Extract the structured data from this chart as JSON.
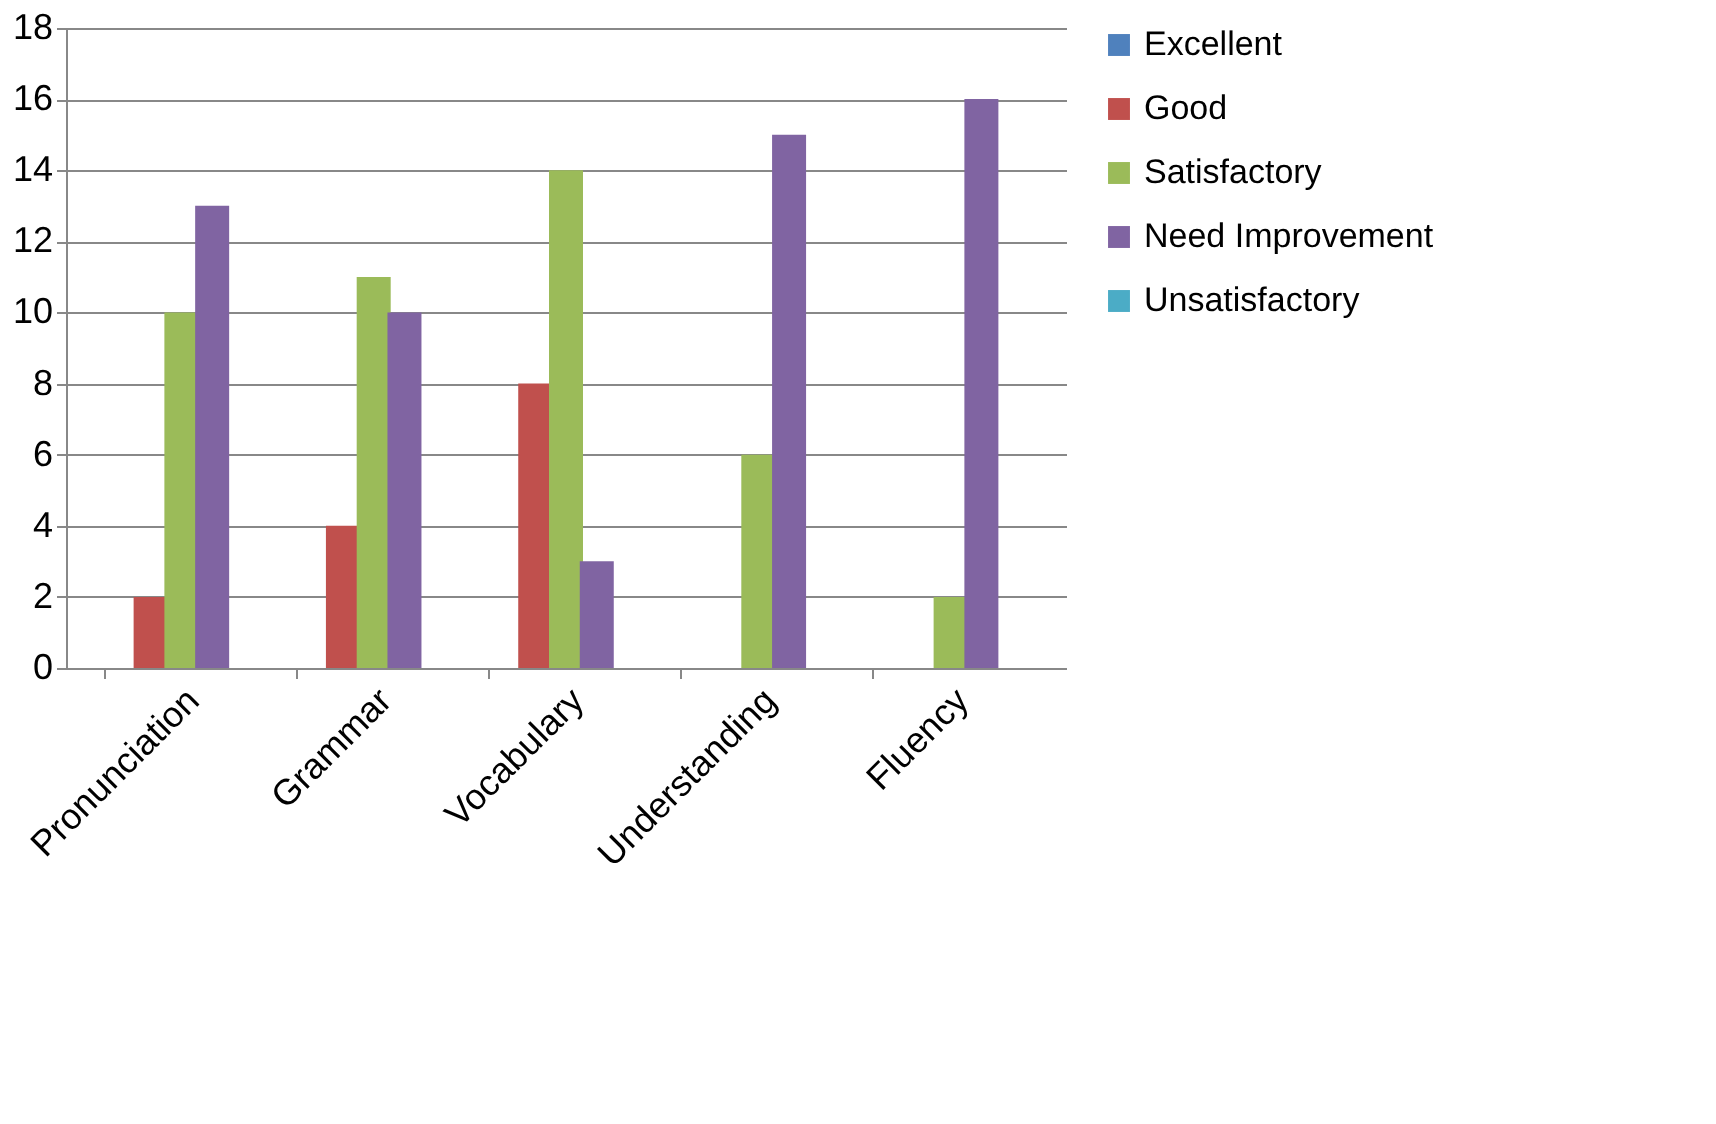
{
  "chart_data": {
    "type": "bar",
    "categories": [
      "Pronunciation",
      "Grammar",
      "Vocabulary",
      "Understanding",
      "Fluency"
    ],
    "series": [
      {
        "name": "Excellent",
        "color": "#4f81bd",
        "values": [
          0,
          0,
          0,
          0,
          0
        ]
      },
      {
        "name": "Good",
        "color": "#c0504d",
        "values": [
          2,
          4,
          8,
          0,
          0
        ]
      },
      {
        "name": "Satisfactory",
        "color": "#9bbb59",
        "values": [
          10,
          11,
          14,
          6,
          2
        ]
      },
      {
        "name": "Need Improvement",
        "color": "#8064a2",
        "values": [
          13,
          10,
          3,
          15,
          16
        ]
      },
      {
        "name": "Unsatisfactory",
        "color": "#4bacc6",
        "values": [
          0,
          0,
          0,
          0,
          0
        ]
      }
    ],
    "ylim": [
      0,
      18
    ],
    "yticks": [
      0,
      2,
      4,
      6,
      8,
      10,
      12,
      14,
      16,
      18
    ],
    "grid": "y",
    "legend": "right"
  }
}
